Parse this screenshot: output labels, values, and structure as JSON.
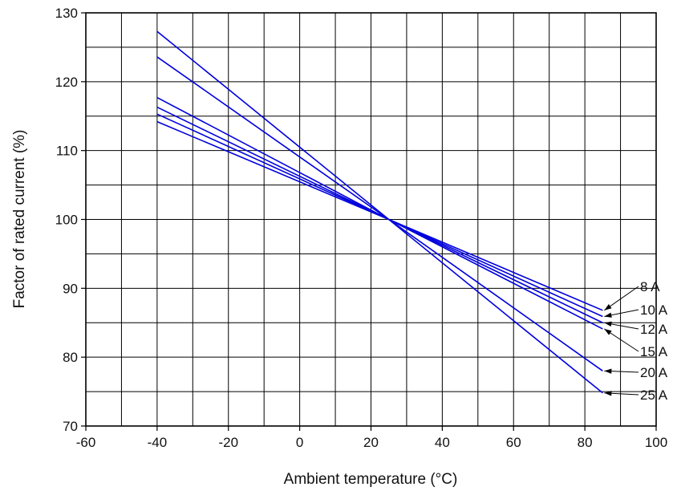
{
  "chart_data": {
    "type": "line",
    "xlabel": "Ambient temperature (°C)",
    "ylabel": "Factor of rated current (%)",
    "xlim": [
      -60,
      100
    ],
    "ylim": [
      70,
      130
    ],
    "x_ticks": [
      -60,
      -40,
      -20,
      0,
      20,
      40,
      60,
      80,
      100
    ],
    "y_ticks": [
      70,
      80,
      90,
      100,
      110,
      120,
      130
    ],
    "grid": true,
    "line_color": "#0000dd",
    "series": [
      {
        "name": "8 A",
        "x": [
          -40,
          25,
          85
        ],
        "y": [
          114.2,
          100,
          86.8
        ]
      },
      {
        "name": "10 A",
        "x": [
          -40,
          25,
          85
        ],
        "y": [
          115.3,
          100,
          85.9
        ]
      },
      {
        "name": "12 A",
        "x": [
          -40,
          25,
          85
        ],
        "y": [
          116.3,
          100,
          85.0
        ]
      },
      {
        "name": "15 A",
        "x": [
          -40,
          25,
          85
        ],
        "y": [
          117.7,
          100,
          84.1
        ]
      },
      {
        "name": "20 A",
        "x": [
          -40,
          25,
          85
        ],
        "y": [
          123.6,
          100,
          78.0
        ]
      },
      {
        "name": "25 A",
        "x": [
          -40,
          25,
          85
        ],
        "y": [
          127.3,
          100,
          74.8
        ]
      }
    ]
  }
}
